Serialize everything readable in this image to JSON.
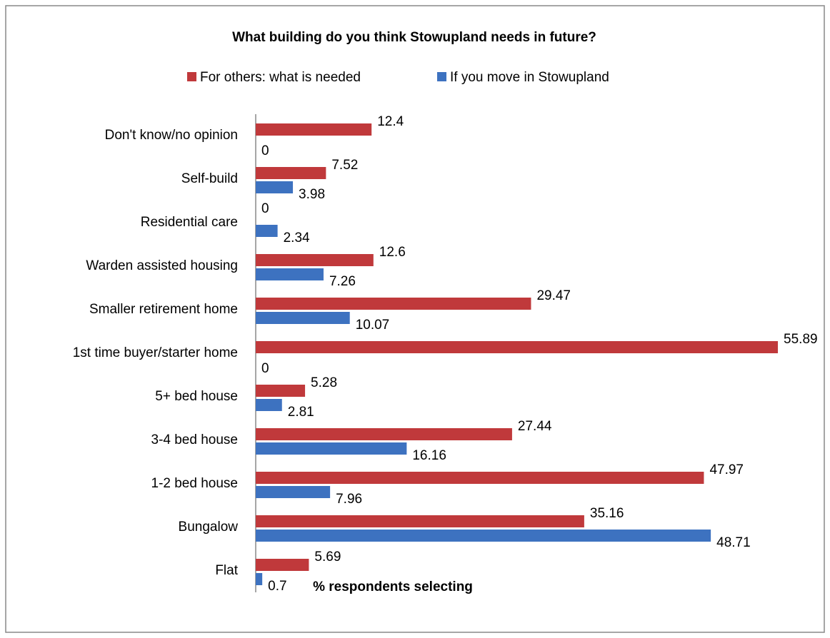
{
  "chart_data": {
    "type": "bar",
    "orientation": "horizontal",
    "title": "What building do you think Stowupland needs in future?",
    "x_label": "% respondents selecting",
    "categories": [
      "Don't know/no opinion",
      "Self-build",
      "Residential care",
      "Warden assisted housing",
      "Smaller retirement home",
      "1st time buyer/starter home",
      "5+ bed house",
      "3-4 bed house",
      "1-2 bed house",
      "Bungalow",
      "Flat"
    ],
    "series": [
      {
        "name": "For others: what is needed",
        "color": "#c0393b",
        "values": [
          12.4,
          7.52,
          0,
          12.6,
          29.47,
          55.89,
          5.28,
          27.44,
          47.97,
          35.16,
          5.69
        ]
      },
      {
        "name": "If you move in Stowupland",
        "color": "#3d72c0",
        "values": [
          0,
          3.98,
          2.34,
          7.26,
          10.07,
          0,
          2.81,
          16.16,
          7.96,
          48.71,
          0.7
        ]
      }
    ],
    "xlim": [
      0,
      60
    ],
    "legend": "top",
    "data_labels": true
  }
}
